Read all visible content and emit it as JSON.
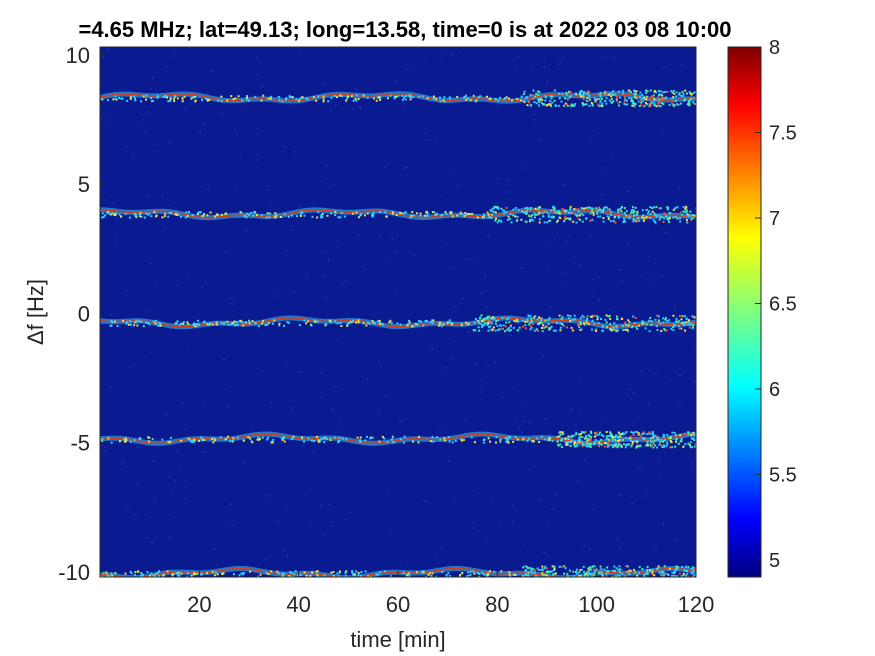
{
  "figure": {
    "title": "=4.65 MHz;  lat=49.13; long=13.58, time=0 is at 2022 03 08 10:00"
  },
  "chart_data": {
    "type": "heatmap",
    "title": "=4.65 MHz;  lat=49.13; long=13.58, time=0 is at 2022 03 08 10:00",
    "xlabel": "time [min]",
    "ylabel": "Δf [Hz]",
    "xlim": [
      0,
      120
    ],
    "ylim": [
      -10.2,
      10.3
    ],
    "xticks": [
      20,
      40,
      60,
      80,
      100,
      120
    ],
    "xtick_labels": [
      "20",
      "40",
      "60",
      "80",
      "100",
      "120"
    ],
    "yticks": [
      10,
      5,
      0,
      -5,
      -10
    ],
    "ytick_labels": [
      "10",
      "5",
      "0",
      "-5",
      "-10"
    ],
    "background_value": 4.95,
    "lines": [
      {
        "delta_f": 8.35,
        "onset_min": 85
      },
      {
        "delta_f": 3.85,
        "onset_min": 78
      },
      {
        "delta_f": -0.35,
        "onset_min": 75
      },
      {
        "delta_f": -4.85,
        "onset_min": 92
      },
      {
        "delta_f": -10.05,
        "onset_min": 85
      }
    ],
    "colorbar": {
      "colormap": "jet",
      "clim": [
        4.9,
        8
      ],
      "ticks": [
        5,
        5.5,
        6,
        6.5,
        7,
        7.5,
        8
      ],
      "tick_labels": [
        "5",
        "5.5",
        "6",
        "6.5",
        "7",
        "7.5",
        "8"
      ]
    },
    "colors": {
      "background": "#0a1a90",
      "line_core": "#d04020",
      "line_halo": "#30c8ff"
    },
    "grid": false
  }
}
